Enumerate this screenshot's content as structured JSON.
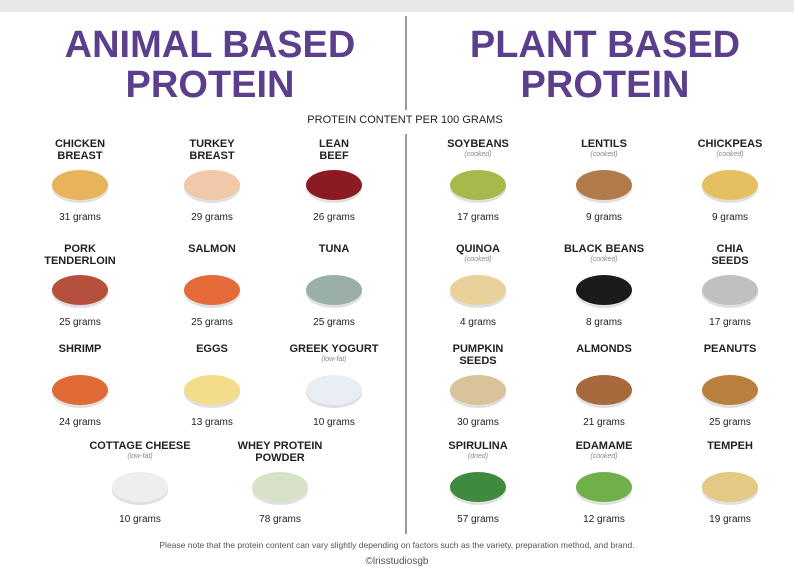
{
  "header": {
    "left_title": [
      "ANIMAL BASED",
      "PROTEIN"
    ],
    "right_title": [
      "PLANT BASED",
      "PROTEIN"
    ],
    "subtitle": "PROTEIN CONTENT PER 100 GRAMS"
  },
  "animal": [
    {
      "name": "CHICKEN BREAST",
      "amount": "31 grams"
    },
    {
      "name": "TURKEY BREAST",
      "amount": "29 grams"
    },
    {
      "name": "LEAN BEEF",
      "amount": "26 grams"
    },
    {
      "name": "PORK TENDERLOIN",
      "amount": "25 grams"
    },
    {
      "name": "SALMON",
      "amount": "25 grams"
    },
    {
      "name": "TUNA",
      "amount": "25 grams"
    },
    {
      "name": "SHRIMP",
      "amount": "24 grams"
    },
    {
      "name": "EGGS",
      "amount": "13 grams"
    },
    {
      "name": "GREEK YOGURT",
      "note": "(low-fat)",
      "amount": "10 grams"
    },
    {
      "name": "COTTAGE CHEESE",
      "note": "(low-fat)",
      "amount": "10 grams"
    },
    {
      "name": "WHEY PROTEIN POWDER",
      "amount": "78 grams"
    }
  ],
  "plant": [
    {
      "name": "SOYBEANS",
      "note": "(cooked)",
      "amount": "17 grams"
    },
    {
      "name": "LENTILS",
      "note": "(cooked)",
      "amount": "9 grams"
    },
    {
      "name": "CHICKPEAS",
      "note": "(cooked)",
      "amount": "9 grams"
    },
    {
      "name": "QUINOA",
      "note": "(cooked)",
      "amount": "4 grams"
    },
    {
      "name": "BLACK BEANS",
      "note": "(cooked)",
      "amount": "8 grams"
    },
    {
      "name": "CHIA SEEDS",
      "amount": "17 grams"
    },
    {
      "name": "PUMPKIN SEEDS",
      "amount": "30 grams"
    },
    {
      "name": "ALMONDS",
      "amount": "21 grams"
    },
    {
      "name": "PEANUTS",
      "amount": "25 grams"
    },
    {
      "name": "SPIRULINA",
      "note": "(dried)",
      "amount": "57 grams"
    },
    {
      "name": "EDAMAME",
      "note": "(cooked)",
      "amount": "12 grams"
    },
    {
      "name": "TEMPEH",
      "amount": "19 grams"
    }
  ],
  "footer": {
    "note": "Please note that the protein content can vary slightly depending on factors such as the variety, preparation method, and brand.",
    "credit": "©lrisstudiosgb"
  }
}
